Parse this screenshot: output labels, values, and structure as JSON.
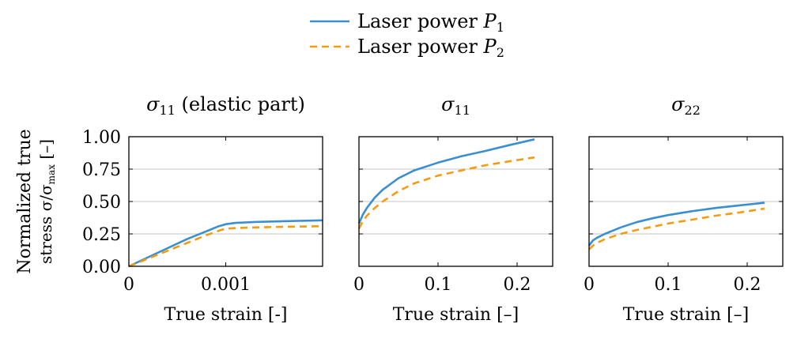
{
  "legend": {
    "position": "top-center",
    "entries": [
      {
        "name": "Laser power",
        "sym": "P",
        "sub": "1",
        "color": "#3a8fd0",
        "dash": "solid"
      },
      {
        "name": "Laser power",
        "sym": "P",
        "sub": "2",
        "color": "#f39c12",
        "dash": "dashed"
      }
    ]
  },
  "ylabel": {
    "line1": "Normalized true",
    "line2": "stress σ/σ",
    "sub": "max",
    "unit": " [–]"
  },
  "chart_data": [
    {
      "type": "line",
      "title": {
        "sym": "σ",
        "sub": "11",
        "suffix": " (elastic part)"
      },
      "xlabel": "True strain [-]",
      "xlim": [
        0,
        0.002
      ],
      "ylim": [
        0,
        1
      ],
      "xticks": [
        {
          "v": 0,
          "label": "0"
        },
        {
          "v": 0.001,
          "label": "0.001"
        }
      ],
      "yticks": [
        {
          "v": 0,
          "label": "0.00"
        },
        {
          "v": 0.25,
          "label": "0.25"
        },
        {
          "v": 0.5,
          "label": "0.50"
        },
        {
          "v": 0.75,
          "label": "0.75"
        },
        {
          "v": 1,
          "label": "1.00"
        }
      ],
      "grid": "horizontal",
      "series": [
        {
          "name": "Laser power P1",
          "x": [
            0,
            0.0002,
            0.0004,
            0.0006,
            0.0008,
            0.00093,
            0.001,
            0.0011,
            0.0013,
            0.0016,
            0.002
          ],
          "y": [
            0,
            0.07,
            0.14,
            0.21,
            0.27,
            0.31,
            0.325,
            0.335,
            0.342,
            0.348,
            0.355
          ]
        },
        {
          "name": "Laser power P2",
          "x": [
            0,
            0.0002,
            0.0004,
            0.0006,
            0.0008,
            0.00095,
            0.001,
            0.0011,
            0.0013,
            0.0016,
            0.002
          ],
          "y": [
            0,
            0.06,
            0.12,
            0.18,
            0.24,
            0.28,
            0.29,
            0.295,
            0.3,
            0.305,
            0.31
          ]
        }
      ]
    },
    {
      "type": "line",
      "title": {
        "sym": "σ",
        "sub": "11",
        "suffix": ""
      },
      "xlabel": "True strain [–]",
      "xlim": [
        0,
        0.245
      ],
      "ylim": [
        0,
        1
      ],
      "xticks": [
        {
          "v": 0,
          "label": "0"
        },
        {
          "v": 0.1,
          "label": "0.1"
        },
        {
          "v": 0.2,
          "label": "0.2"
        }
      ],
      "yticks": [
        {
          "v": 0,
          "label": ""
        },
        {
          "v": 0.25,
          "label": ""
        },
        {
          "v": 0.5,
          "label": ""
        },
        {
          "v": 0.75,
          "label": ""
        },
        {
          "v": 1,
          "label": ""
        }
      ],
      "grid": "horizontal",
      "series": [
        {
          "name": "Laser power P1",
          "x": [
            0,
            0.005,
            0.01,
            0.02,
            0.03,
            0.05,
            0.07,
            0.1,
            0.13,
            0.16,
            0.19,
            0.222
          ],
          "y": [
            0.33,
            0.4,
            0.45,
            0.53,
            0.59,
            0.68,
            0.74,
            0.8,
            0.85,
            0.89,
            0.935,
            0.98
          ]
        },
        {
          "name": "Laser power P2",
          "x": [
            0,
            0.005,
            0.01,
            0.02,
            0.03,
            0.05,
            0.07,
            0.1,
            0.13,
            0.16,
            0.19,
            0.222
          ],
          "y": [
            0.29,
            0.35,
            0.39,
            0.45,
            0.5,
            0.58,
            0.64,
            0.7,
            0.74,
            0.78,
            0.81,
            0.84
          ]
        }
      ]
    },
    {
      "type": "line",
      "title": {
        "sym": "σ",
        "sub": "22",
        "suffix": ""
      },
      "xlabel": "True strain [–]",
      "xlim": [
        0,
        0.245
      ],
      "ylim": [
        0,
        1
      ],
      "xticks": [
        {
          "v": 0,
          "label": "0"
        },
        {
          "v": 0.1,
          "label": "0.1"
        },
        {
          "v": 0.2,
          "label": "0.2"
        }
      ],
      "yticks": [
        {
          "v": 0,
          "label": ""
        },
        {
          "v": 0.25,
          "label": ""
        },
        {
          "v": 0.5,
          "label": ""
        },
        {
          "v": 0.75,
          "label": ""
        },
        {
          "v": 1,
          "label": ""
        }
      ],
      "grid": "horizontal",
      "series": [
        {
          "name": "Laser power P1",
          "x": [
            0,
            0.005,
            0.01,
            0.02,
            0.04,
            0.06,
            0.08,
            0.1,
            0.13,
            0.16,
            0.19,
            0.222
          ],
          "y": [
            0.16,
            0.2,
            0.22,
            0.25,
            0.3,
            0.34,
            0.37,
            0.395,
            0.425,
            0.45,
            0.47,
            0.49
          ]
        },
        {
          "name": "Laser power P2",
          "x": [
            0,
            0.005,
            0.01,
            0.02,
            0.04,
            0.06,
            0.08,
            0.1,
            0.13,
            0.16,
            0.19,
            0.222
          ],
          "y": [
            0.13,
            0.16,
            0.18,
            0.21,
            0.25,
            0.28,
            0.305,
            0.33,
            0.36,
            0.39,
            0.415,
            0.445
          ]
        }
      ]
    }
  ]
}
